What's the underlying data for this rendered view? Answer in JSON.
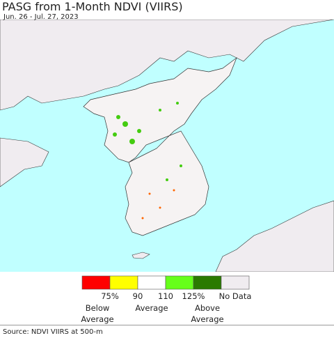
{
  "title": "PASG from 1-Month NDVI (VIIRS)",
  "subtitle": "Jun. 26 - Jul. 27, 2023",
  "legend": {
    "colors": [
      "#ff0000",
      "#ffff00",
      "#ffffff",
      "#66ff1a",
      "#2a7a00",
      "#f0ecf0"
    ],
    "tick_labels": [
      "75%",
      "90",
      "110",
      "125%"
    ],
    "no_data": "No Data",
    "captions": [
      "Below Average",
      "Average",
      "Above Average"
    ]
  },
  "source": "Source: NDVI VIIRS at 500-m"
}
